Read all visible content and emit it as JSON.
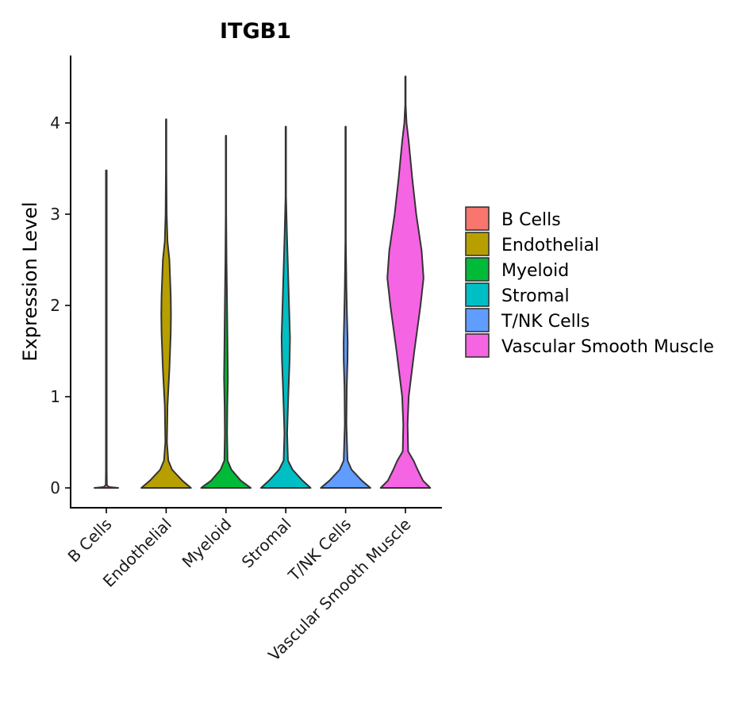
{
  "chart_data": {
    "type": "violin",
    "title": "ITGB1",
    "xlabel": "",
    "ylabel": "Expression Level",
    "ylim": [
      -0.22,
      4.75
    ],
    "yticks": [
      "0",
      "1",
      "2",
      "3",
      "4"
    ],
    "categories": [
      "B Cells",
      "Endothelial",
      "Myeloid",
      "Stromal",
      "T/NK Cells",
      "Vascular Smooth Muscle"
    ],
    "legend": {
      "position": "right",
      "entries": [
        "B Cells",
        "Endothelial",
        "Myeloid",
        "Stromal",
        "T/NK Cells",
        "Vascular Smooth Muscle"
      ]
    },
    "series": [
      {
        "name": "B Cells",
        "color": "#F8766D",
        "max": 3.48,
        "profile": [
          [
            0.0,
            0.44
          ],
          [
            0.01,
            0.1
          ],
          [
            0.03,
            0.02
          ],
          [
            0.2,
            0.015
          ],
          [
            3.48,
            0.015
          ]
        ]
      },
      {
        "name": "Endothelial",
        "color": "#B79F00",
        "max": 4.04,
        "profile": [
          [
            0.0,
            0.92
          ],
          [
            0.08,
            0.6
          ],
          [
            0.2,
            0.22
          ],
          [
            0.3,
            0.08
          ],
          [
            0.5,
            0.03
          ],
          [
            0.9,
            0.05
          ],
          [
            1.3,
            0.12
          ],
          [
            1.7,
            0.17
          ],
          [
            1.9,
            0.18
          ],
          [
            2.1,
            0.17
          ],
          [
            2.5,
            0.12
          ],
          [
            2.7,
            0.05
          ],
          [
            3.0,
            0.02
          ],
          [
            3.5,
            0.01
          ],
          [
            4.04,
            0.01
          ]
        ]
      },
      {
        "name": "Myeloid",
        "color": "#00BA38",
        "max": 3.86,
        "profile": [
          [
            0.0,
            0.92
          ],
          [
            0.08,
            0.55
          ],
          [
            0.2,
            0.2
          ],
          [
            0.3,
            0.06
          ],
          [
            0.6,
            0.04
          ],
          [
            0.9,
            0.05
          ],
          [
            1.2,
            0.07
          ],
          [
            1.5,
            0.06
          ],
          [
            2.0,
            0.04
          ],
          [
            2.5,
            0.02
          ],
          [
            3.0,
            0.01
          ],
          [
            3.86,
            0.01
          ]
        ]
      },
      {
        "name": "Stromal",
        "color": "#00BFC4",
        "max": 3.96,
        "profile": [
          [
            0.0,
            0.92
          ],
          [
            0.08,
            0.62
          ],
          [
            0.2,
            0.25
          ],
          [
            0.3,
            0.08
          ],
          [
            0.6,
            0.05
          ],
          [
            1.0,
            0.09
          ],
          [
            1.4,
            0.14
          ],
          [
            1.65,
            0.155
          ],
          [
            2.0,
            0.12
          ],
          [
            2.5,
            0.07
          ],
          [
            2.8,
            0.04
          ],
          [
            3.2,
            0.01
          ],
          [
            3.96,
            0.01
          ]
        ]
      },
      {
        "name": "T/NK Cells",
        "color": "#619CFF",
        "max": 3.96,
        "profile": [
          [
            0.0,
            0.92
          ],
          [
            0.08,
            0.6
          ],
          [
            0.2,
            0.22
          ],
          [
            0.3,
            0.07
          ],
          [
            0.7,
            0.03
          ],
          [
            1.1,
            0.04
          ],
          [
            1.4,
            0.07
          ],
          [
            1.6,
            0.075
          ],
          [
            1.9,
            0.05
          ],
          [
            2.2,
            0.03
          ],
          [
            2.7,
            0.01
          ],
          [
            3.96,
            0.01
          ]
        ]
      },
      {
        "name": "Vascular Smooth Muscle",
        "color": "#F564E3",
        "max": 4.51,
        "profile": [
          [
            0.0,
            0.92
          ],
          [
            0.08,
            0.65
          ],
          [
            0.2,
            0.45
          ],
          [
            0.3,
            0.3
          ],
          [
            0.4,
            0.1
          ],
          [
            0.7,
            0.08
          ],
          [
            1.0,
            0.12
          ],
          [
            1.5,
            0.33
          ],
          [
            2.0,
            0.56
          ],
          [
            2.3,
            0.67
          ],
          [
            2.6,
            0.6
          ],
          [
            3.0,
            0.4
          ],
          [
            3.4,
            0.25
          ],
          [
            3.8,
            0.12
          ],
          [
            4.0,
            0.04
          ],
          [
            4.2,
            0.01
          ],
          [
            4.51,
            0.01
          ]
        ]
      }
    ]
  }
}
